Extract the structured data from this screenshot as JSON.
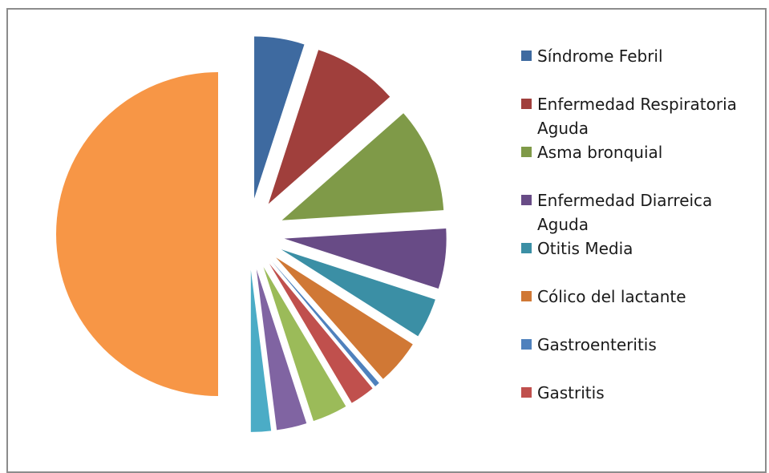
{
  "chart_data": {
    "type": "pie",
    "categories": [
      "Síndrome Febril",
      "Enfermedad Respiratoria Aguda",
      "Asma bronquial",
      "Enfermedad Diarreica Aguda",
      "Otitis Media",
      "Cólico del lactante",
      "Gastroenteritis",
      "Gastritis",
      null,
      null,
      null,
      null
    ],
    "values": [
      5,
      8.5,
      10.5,
      6,
      4,
      4.5,
      0.5,
      2.5,
      3.5,
      3,
      2,
      50
    ],
    "colors": [
      "#3e6aa0",
      "#a03f3c",
      "#7f9a48",
      "#684b86",
      "#3b8fa5",
      "#d07835",
      "#4f81bd",
      "#c0504d",
      "#9bbb59",
      "#8064a2",
      "#4bacc6",
      "#f79646"
    ],
    "exploded": true,
    "legend": "right"
  }
}
